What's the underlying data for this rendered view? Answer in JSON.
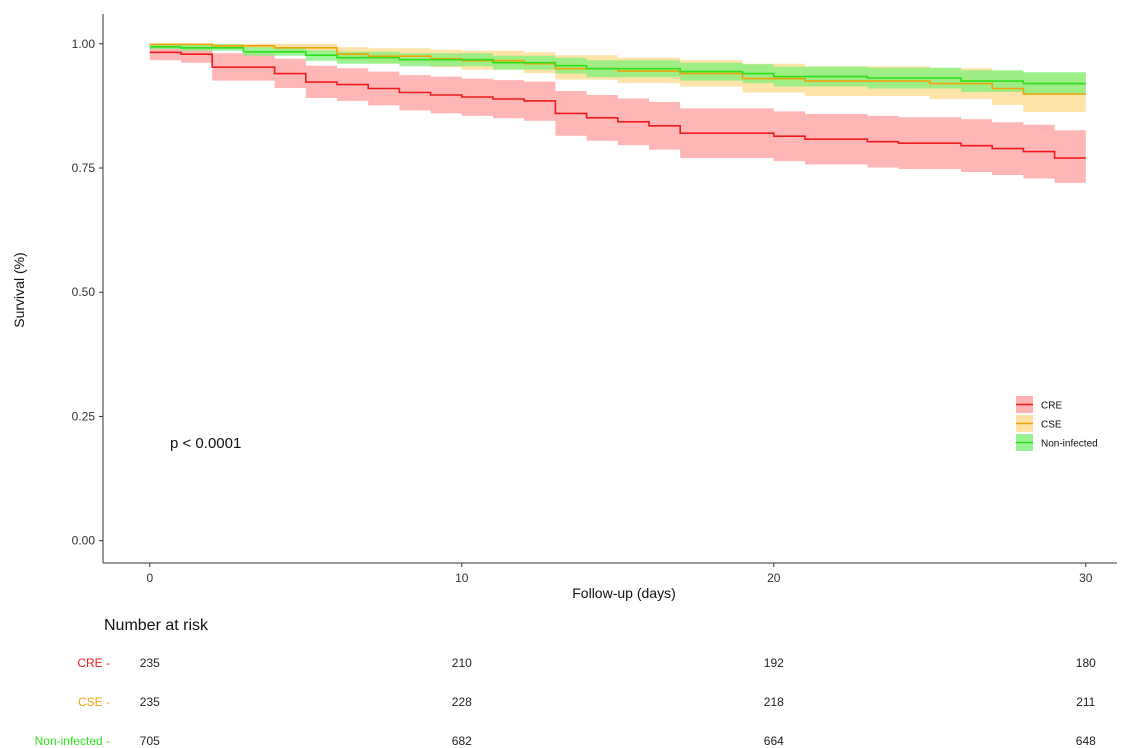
{
  "chart_data": {
    "type": "line",
    "xlabel": "Follow-up (days)",
    "ylabel": "Survival (%)",
    "xlim": [
      -1.5,
      31.0
    ],
    "ylim": [
      -0.045,
      1.06
    ],
    "x_ticks": [
      0,
      10,
      20,
      30
    ],
    "x_tick_labels": [
      "0",
      "10",
      "20",
      "30"
    ],
    "y_ticks": [
      0,
      0.25,
      0.5,
      0.75,
      1.0
    ],
    "y_tick_labels": [
      "0.00",
      "0.25",
      "0.50",
      "0.75",
      "1.00"
    ],
    "grid": false,
    "legend_position": "right",
    "annotation": "p < 0.0001",
    "series": [
      {
        "name": "CRE",
        "color": "#ee1c1c",
        "band_color": "#ff9e9e",
        "steps": [
          [
            0,
            0.983
          ],
          [
            1,
            0.979
          ],
          [
            2,
            0.953
          ],
          [
            4,
            0.94
          ],
          [
            5,
            0.923
          ],
          [
            6,
            0.918
          ],
          [
            7,
            0.91
          ],
          [
            8,
            0.902
          ],
          [
            9,
            0.897
          ],
          [
            10,
            0.893
          ],
          [
            11,
            0.889
          ],
          [
            12,
            0.885
          ],
          [
            13,
            0.86
          ],
          [
            14,
            0.851
          ],
          [
            15,
            0.843
          ],
          [
            16,
            0.835
          ],
          [
            17,
            0.82
          ],
          [
            20,
            0.814
          ],
          [
            21,
            0.808
          ],
          [
            23,
            0.803
          ],
          [
            24,
            0.8
          ],
          [
            26,
            0.795
          ],
          [
            27,
            0.789
          ],
          [
            28,
            0.783
          ],
          [
            29,
            0.77
          ],
          [
            30,
            0.77
          ]
        ],
        "lower": [
          0.967,
          0.962,
          0.926,
          0.911,
          0.891,
          0.885,
          0.876,
          0.866,
          0.86,
          0.855,
          0.85,
          0.845,
          0.815,
          0.805,
          0.796,
          0.787,
          0.77,
          0.764,
          0.757,
          0.751,
          0.748,
          0.742,
          0.736,
          0.729,
          0.72,
          0.72
        ],
        "upper": [
          1.0,
          0.997,
          0.981,
          0.97,
          0.956,
          0.951,
          0.944,
          0.937,
          0.934,
          0.93,
          0.927,
          0.924,
          0.905,
          0.897,
          0.89,
          0.883,
          0.87,
          0.864,
          0.859,
          0.855,
          0.852,
          0.848,
          0.842,
          0.837,
          0.826,
          0.826
        ]
      },
      {
        "name": "CSE",
        "color": "#f0a30a",
        "band_color": "#ffd98c",
        "steps": [
          [
            0,
            0.999
          ],
          [
            2,
            0.996
          ],
          [
            4,
            0.992
          ],
          [
            6,
            0.979
          ],
          [
            7,
            0.975
          ],
          [
            9,
            0.97
          ],
          [
            10,
            0.966
          ],
          [
            12,
            0.96
          ],
          [
            13,
            0.95
          ],
          [
            15,
            0.945
          ],
          [
            17,
            0.94
          ],
          [
            19,
            0.93
          ],
          [
            21,
            0.925
          ],
          [
            25,
            0.92
          ],
          [
            27,
            0.91
          ],
          [
            28,
            0.899
          ],
          [
            30,
            0.899
          ]
        ],
        "lower": [
          0.993,
          0.99,
          0.982,
          0.966,
          0.961,
          0.953,
          0.948,
          0.941,
          0.928,
          0.921,
          0.914,
          0.902,
          0.895,
          0.889,
          0.877,
          0.863,
          0.863
        ],
        "upper": [
          1.0,
          1.0,
          1.0,
          0.993,
          0.991,
          0.988,
          0.986,
          0.983,
          0.977,
          0.972,
          0.967,
          0.96,
          0.955,
          0.951,
          0.945,
          0.94,
          0.94
        ]
      },
      {
        "name": "Non-infected",
        "color": "#2ee01a",
        "band_color": "#7ff07a",
        "steps": [
          [
            0,
            0.994
          ],
          [
            1,
            0.992
          ],
          [
            3,
            0.984
          ],
          [
            5,
            0.977
          ],
          [
            6,
            0.972
          ],
          [
            8,
            0.968
          ],
          [
            11,
            0.962
          ],
          [
            13,
            0.956
          ],
          [
            14,
            0.95
          ],
          [
            17,
            0.944
          ],
          [
            19,
            0.94
          ],
          [
            20,
            0.934
          ],
          [
            23,
            0.931
          ],
          [
            26,
            0.925
          ],
          [
            28,
            0.92
          ],
          [
            30,
            0.92
          ]
        ],
        "lower": [
          0.989,
          0.986,
          0.976,
          0.966,
          0.96,
          0.955,
          0.948,
          0.94,
          0.933,
          0.926,
          0.921,
          0.914,
          0.91,
          0.903,
          0.897,
          0.897
        ],
        "upper": [
          1.0,
          0.999,
          0.993,
          0.987,
          0.984,
          0.981,
          0.976,
          0.972,
          0.967,
          0.962,
          0.959,
          0.954,
          0.952,
          0.947,
          0.943,
          0.943
        ]
      }
    ],
    "risk_table": {
      "title": "Number at risk",
      "times": [
        0,
        10,
        20,
        30
      ],
      "rows": [
        {
          "name": "CRE",
          "values": [
            235,
            210,
            192,
            180
          ]
        },
        {
          "name": "CSE",
          "values": [
            235,
            228,
            218,
            211
          ]
        },
        {
          "name": "Non-infected",
          "values": [
            705,
            682,
            664,
            648
          ]
        }
      ]
    }
  }
}
